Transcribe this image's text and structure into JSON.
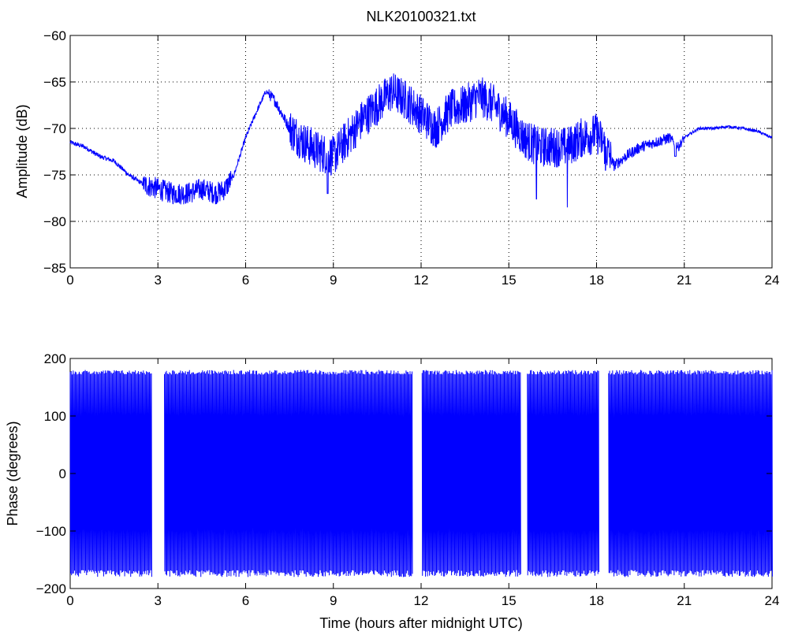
{
  "chart_data": [
    {
      "type": "line",
      "title": "NLK20100321.txt",
      "xlabel": "",
      "ylabel": "Amplitude (dB)",
      "xlim": [
        0,
        24
      ],
      "ylim": [
        -85,
        -60
      ],
      "xticks": [
        0,
        3,
        6,
        9,
        12,
        15,
        18,
        21,
        24
      ],
      "yticks": [
        -60,
        -65,
        -70,
        -75,
        -80,
        -85
      ],
      "xtick_labels": [
        "0",
        "3",
        "6",
        "9",
        "12",
        "15",
        "18",
        "21",
        "24"
      ],
      "ytick_labels": [
        "−60",
        "−65",
        "−70",
        "−75",
        "−80",
        "−85"
      ],
      "grid": true,
      "color": "#0000ff",
      "series": [
        {
          "x": [
            0,
            0.5,
            1,
            1.5,
            2,
            2.5,
            3,
            3.5,
            4,
            4.5,
            5,
            5.3,
            5.6,
            6,
            6.4,
            6.7,
            7,
            7.5,
            8,
            8.5,
            9,
            9.5,
            10,
            10.5,
            11,
            11.5,
            12,
            12.5,
            13,
            13.5,
            14,
            14.5,
            15,
            15.5,
            16,
            16.5,
            17,
            17.5,
            18,
            18.3,
            18.6,
            19,
            19.5,
            20,
            20.5,
            20.8,
            21,
            21.5,
            22,
            22.5,
            23,
            23.5,
            24
          ],
          "y": [
            -71.5,
            -72,
            -73,
            -73.5,
            -75,
            -76,
            -76.5,
            -77,
            -77,
            -76.5,
            -77,
            -76.5,
            -75,
            -71,
            -68,
            -66,
            -67,
            -70,
            -71.5,
            -72.5,
            -73,
            -71,
            -69,
            -67.5,
            -66,
            -67,
            -68.5,
            -70,
            -68,
            -67.5,
            -66.5,
            -67.5,
            -69,
            -71,
            -72,
            -72,
            -72,
            -71,
            -70.5,
            -72,
            -74,
            -73,
            -72,
            -71.5,
            -71,
            -72,
            -71,
            -70,
            -70,
            -69.8,
            -70,
            -70.3,
            -71
          ]
        }
      ]
    },
    {
      "type": "line",
      "title": "",
      "xlabel": "Time (hours after midnight UTC)",
      "ylabel": "Phase (degrees)",
      "xlim": [
        0,
        24
      ],
      "ylim": [
        -200,
        200
      ],
      "xticks": [
        0,
        3,
        6,
        9,
        12,
        15,
        18,
        21,
        24
      ],
      "yticks": [
        200,
        100,
        0,
        -100,
        -200
      ],
      "xtick_labels": [
        "0",
        "3",
        "6",
        "9",
        "12",
        "15",
        "18",
        "21",
        "24"
      ],
      "ytick_labels": [
        "200",
        "100",
        "0",
        "−100",
        "−200"
      ],
      "grid": false,
      "color": "#0000ff",
      "series": [
        {
          "pattern": "wrapped sawtooth between -180 and 180 degrees",
          "range": [
            -180,
            180
          ],
          "gaps": [
            [
              2.8,
              3.2
            ],
            [
              11.7,
              12.0
            ],
            [
              15.4,
              15.6
            ],
            [
              18.1,
              18.4
            ]
          ]
        }
      ]
    }
  ]
}
